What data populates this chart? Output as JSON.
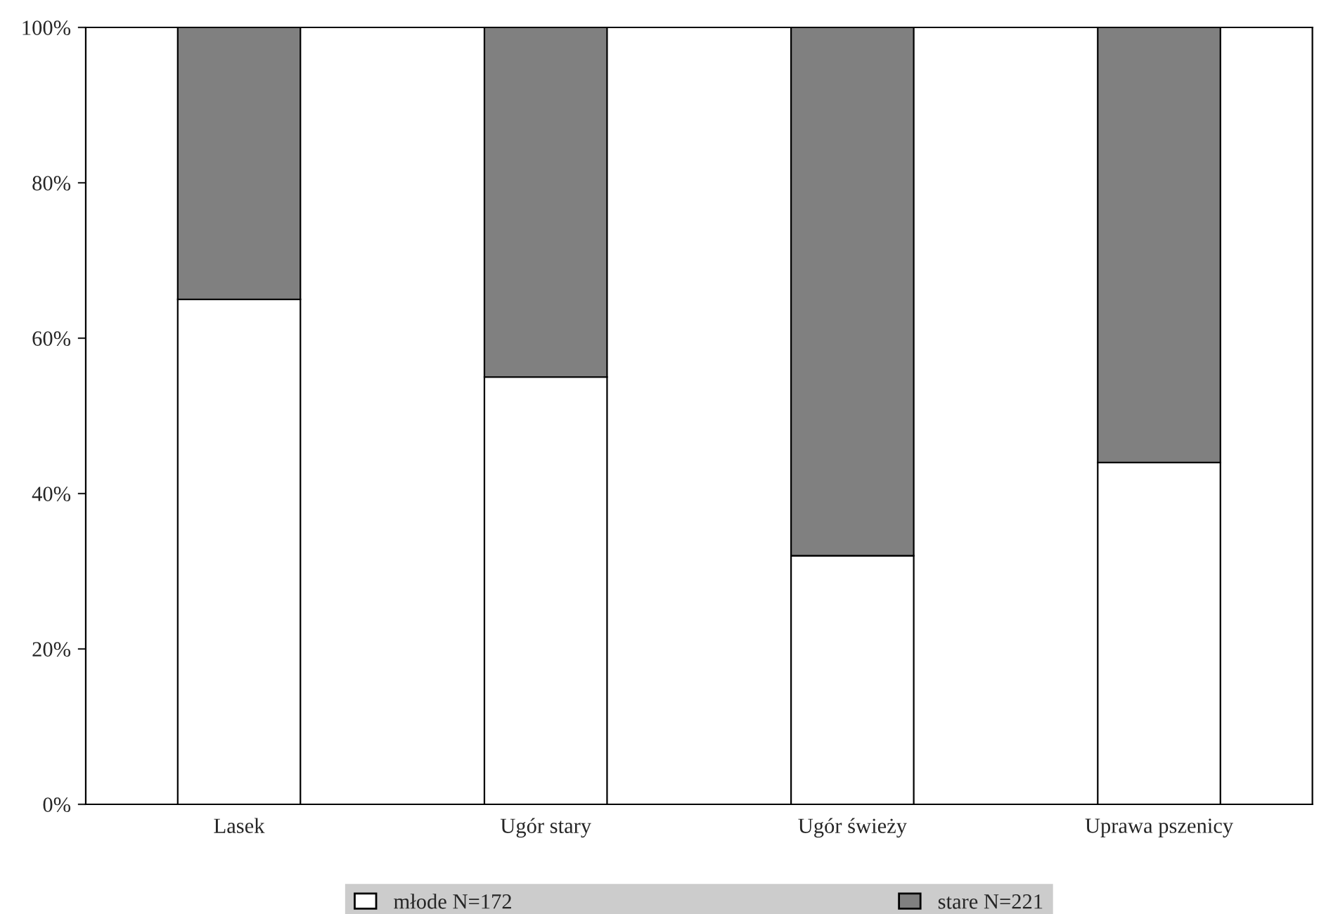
{
  "chart_data": {
    "type": "bar",
    "stacked": true,
    "categories": [
      "Lasek",
      "Ugór stary",
      "Ugór świeży",
      "Uprawa pszenicy"
    ],
    "series": [
      {
        "name": "młode N=172",
        "color": "#ffffff",
        "values": [
          65,
          55,
          32,
          44
        ]
      },
      {
        "name": "stare N=221",
        "color": "#808080",
        "values": [
          35,
          45,
          68,
          56
        ]
      }
    ],
    "ylim": [
      0,
      100
    ],
    "yticks": [
      {
        "value": 0,
        "label": "0%"
      },
      {
        "value": 20,
        "label": "20%"
      },
      {
        "value": 40,
        "label": "40%"
      },
      {
        "value": 60,
        "label": "60%"
      },
      {
        "value": 80,
        "label": "80%"
      },
      {
        "value": 100,
        "label": "100%"
      }
    ],
    "grid": false,
    "legend": "bottom"
  }
}
